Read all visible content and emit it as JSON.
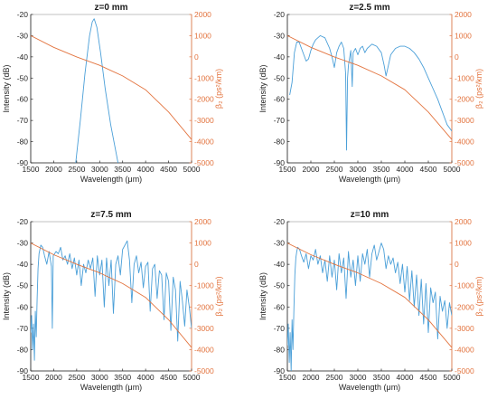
{
  "figure": {
    "colors": {
      "intensity": "#4a9fd8",
      "beta2": "#e3743f",
      "axis": "#262626",
      "frame": "#b3b3b3"
    }
  },
  "chart_data": [
    {
      "type": "line",
      "title": "z=0 mm",
      "xlabel": "Wavelength (μm)",
      "ylabel_left": "Intensity (dB)",
      "ylabel_right": "β₂ (ps²/km)",
      "xlim": [
        1500,
        5000
      ],
      "xticks": [
        1500,
        2000,
        2500,
        3000,
        3500,
        4000,
        4500,
        5000
      ],
      "ylim_left": [
        -90,
        -20
      ],
      "yticks_left": [
        -20,
        -30,
        -40,
        -50,
        -60,
        -70,
        -80,
        -90
      ],
      "ylim_right": [
        -5000,
        2000
      ],
      "yticks_right": [
        2000,
        1000,
        0,
        -1000,
        -2000,
        -3000,
        -4000,
        -5000
      ],
      "grid": false,
      "series": [
        {
          "axis": "left",
          "color": "intensity",
          "x": [
            2480,
            2580,
            2680,
            2780,
            2840,
            2880,
            2940,
            3020,
            3120,
            3240,
            3400
          ],
          "y": [
            -90,
            -70,
            -48,
            -30,
            -23.5,
            -22,
            -26,
            -38,
            -55,
            -72,
            -90
          ]
        },
        {
          "axis": "right",
          "color": "beta2",
          "x": [
            1500,
            2000,
            2500,
            3000,
            3500,
            4000,
            4500,
            5000
          ],
          "y": [
            1000,
            450,
            0,
            -400,
            -900,
            -1550,
            -2600,
            -3900
          ]
        }
      ]
    },
    {
      "type": "line",
      "title": "z=2.5 mm",
      "xlabel": "Wavelength (μm)",
      "ylabel_left": "Intensity (dB)",
      "ylabel_right": "β₂ (ps²/km)",
      "xlim": [
        1500,
        5000
      ],
      "xticks": [
        1500,
        2000,
        2500,
        3000,
        3500,
        4000,
        4500,
        5000
      ],
      "ylim_left": [
        -90,
        -20
      ],
      "yticks_left": [
        -20,
        -30,
        -40,
        -50,
        -60,
        -70,
        -80,
        -90
      ],
      "ylim_right": [
        -5000,
        2000
      ],
      "yticks_right": [
        2000,
        1000,
        0,
        -1000,
        -2000,
        -3000,
        -4000,
        -5000
      ],
      "grid": false,
      "series": [
        {
          "axis": "left",
          "color": "intensity",
          "x": [
            1550,
            1600,
            1650,
            1700,
            1750,
            1800,
            1850,
            1900,
            1950,
            2000,
            2050,
            2100,
            2200,
            2300,
            2400,
            2450,
            2500,
            2550,
            2600,
            2650,
            2700,
            2740,
            2760,
            2780,
            2800,
            2850,
            2880,
            2900,
            2950,
            3000,
            3050,
            3100,
            3150,
            3200,
            3300,
            3400,
            3500,
            3560,
            3600,
            3640,
            3700,
            3800,
            3900,
            4000,
            4100,
            4200,
            4300,
            4400,
            4500,
            4600,
            4700,
            4800,
            4900,
            5000
          ],
          "y": [
            -58,
            -52,
            -38,
            -33,
            -33,
            -36,
            -39,
            -42,
            -41,
            -37,
            -34,
            -32,
            -30,
            -31,
            -36,
            -40,
            -45,
            -38,
            -35,
            -33,
            -36,
            -48,
            -84,
            -50,
            -44,
            -37,
            -54,
            -38,
            -36,
            -39,
            -36,
            -35,
            -38,
            -36,
            -34,
            -35,
            -38,
            -44,
            -49,
            -45,
            -39,
            -36,
            -35,
            -35,
            -36,
            -38,
            -41,
            -45,
            -50,
            -55,
            -60,
            -66,
            -72,
            -75
          ]
        },
        {
          "axis": "right",
          "color": "beta2",
          "x": [
            1500,
            2000,
            2500,
            3000,
            3500,
            4000,
            4500,
            5000
          ],
          "y": [
            1000,
            450,
            0,
            -400,
            -900,
            -1550,
            -2600,
            -3900
          ]
        }
      ]
    },
    {
      "type": "line",
      "title": "z=7.5 mm",
      "xlabel": "Wavelength (μm)",
      "ylabel_left": "Intensity (dB)",
      "ylabel_right": "β₂ (ps²/km)",
      "xlim": [
        1500,
        5000
      ],
      "xticks": [
        1500,
        2000,
        2500,
        3000,
        3500,
        4000,
        4500,
        5000
      ],
      "ylim_left": [
        -90,
        -20
      ],
      "yticks_left": [
        -20,
        -30,
        -40,
        -50,
        -60,
        -70,
        -80,
        -90
      ],
      "ylim_right": [
        -5000,
        2000
      ],
      "yticks_right": [
        2000,
        1000,
        0,
        -1000,
        -2000,
        -3000,
        -4000,
        -5000
      ],
      "grid": false,
      "series": [
        {
          "axis": "left",
          "color": "intensity",
          "x": [
            1500,
            1520,
            1540,
            1560,
            1580,
            1600,
            1620,
            1640,
            1660,
            1680,
            1700,
            1720,
            1760,
            1800,
            1850,
            1900,
            1950,
            1970,
            1990,
            2050,
            2100,
            2150,
            2200,
            2250,
            2300,
            2350,
            2400,
            2450,
            2500,
            2550,
            2600,
            2650,
            2700,
            2750,
            2800,
            2850,
            2900,
            2950,
            3000,
            3050,
            3100,
            3150,
            3200,
            3250,
            3300,
            3350,
            3400,
            3450,
            3500,
            3550,
            3600,
            3650,
            3700,
            3750,
            3800,
            3850,
            3900,
            3950,
            4000,
            4050,
            4100,
            4150,
            4200,
            4250,
            4300,
            4350,
            4400,
            4450,
            4500,
            4550,
            4600,
            4650,
            4700,
            4750,
            4800,
            4850,
            4900,
            4950,
            5000
          ],
          "y": [
            -72,
            -64,
            -80,
            -68,
            -85,
            -62,
            -74,
            -56,
            -42,
            -35,
            -33,
            -31,
            -32,
            -36,
            -40,
            -34,
            -41,
            -70,
            -36,
            -34,
            -35,
            -32,
            -38,
            -36,
            -40,
            -35,
            -42,
            -37,
            -45,
            -38,
            -50,
            -40,
            -44,
            -38,
            -42,
            -37,
            -55,
            -36,
            -45,
            -38,
            -60,
            -37,
            -50,
            -38,
            -63,
            -40,
            -36,
            -45,
            -33,
            -31,
            -29,
            -38,
            -58,
            -40,
            -36,
            -44,
            -39,
            -51,
            -41,
            -39,
            -62,
            -42,
            -40,
            -56,
            -43,
            -45,
            -66,
            -44,
            -48,
            -71,
            -46,
            -52,
            -76,
            -48,
            -57,
            -69,
            -52,
            -60,
            -70
          ]
        },
        {
          "axis": "right",
          "color": "beta2",
          "x": [
            1500,
            2000,
            2500,
            3000,
            3500,
            4000,
            4500,
            5000
          ],
          "y": [
            1000,
            450,
            0,
            -400,
            -900,
            -1550,
            -2600,
            -3900
          ]
        }
      ]
    },
    {
      "type": "line",
      "title": "z=10 mm",
      "xlabel": "Wavelength (μm)",
      "ylabel_left": "Intensity (dB)",
      "ylabel_right": "β₂ (ps²/km)",
      "xlim": [
        1500,
        5000
      ],
      "xticks": [
        1500,
        2000,
        2500,
        3000,
        3500,
        4000,
        4500,
        5000
      ],
      "ylim_left": [
        -90,
        -20
      ],
      "yticks_left": [
        -20,
        -30,
        -40,
        -50,
        -60,
        -70,
        -80,
        -90
      ],
      "ylim_right": [
        -5000,
        2000
      ],
      "yticks_right": [
        2000,
        1000,
        0,
        -1000,
        -2000,
        -3000,
        -4000,
        -5000
      ],
      "grid": false,
      "series": [
        {
          "axis": "left",
          "color": "intensity",
          "x": [
            1500,
            1520,
            1540,
            1560,
            1580,
            1600,
            1620,
            1640,
            1660,
            1680,
            1700,
            1720,
            1760,
            1800,
            1850,
            1900,
            1950,
            2000,
            2050,
            2100,
            2150,
            2200,
            2250,
            2300,
            2350,
            2400,
            2450,
            2500,
            2550,
            2600,
            2650,
            2700,
            2750,
            2800,
            2850,
            2900,
            2950,
            3000,
            3050,
            3100,
            3150,
            3200,
            3250,
            3300,
            3350,
            3400,
            3450,
            3500,
            3550,
            3600,
            3650,
            3700,
            3750,
            3800,
            3850,
            3900,
            3950,
            4000,
            4050,
            4100,
            4150,
            4200,
            4250,
            4300,
            4350,
            4400,
            4450,
            4500,
            4550,
            4600,
            4650,
            4700,
            4750,
            4800,
            4850,
            4900,
            4950,
            5000
          ],
          "y": [
            -78,
            -68,
            -86,
            -72,
            -90,
            -66,
            -80,
            -60,
            -45,
            -37,
            -34,
            -32,
            -33,
            -36,
            -39,
            -35,
            -42,
            -36,
            -38,
            -33,
            -40,
            -36,
            -44,
            -38,
            -48,
            -36,
            -46,
            -38,
            -52,
            -35,
            -44,
            -37,
            -56,
            -34,
            -46,
            -38,
            -50,
            -36,
            -48,
            -35,
            -40,
            -33,
            -46,
            -35,
            -31,
            -38,
            -34,
            -30,
            -33,
            -42,
            -36,
            -40,
            -37,
            -44,
            -39,
            -49,
            -40,
            -53,
            -41,
            -57,
            -43,
            -60,
            -45,
            -64,
            -47,
            -68,
            -49,
            -72,
            -51,
            -58,
            -53,
            -75,
            -55,
            -62,
            -57,
            -70,
            -58,
            -64
          ]
        },
        {
          "axis": "right",
          "color": "beta2",
          "x": [
            1500,
            2000,
            2500,
            3000,
            3500,
            4000,
            4500,
            5000
          ],
          "y": [
            1000,
            450,
            0,
            -400,
            -900,
            -1550,
            -2600,
            -3900
          ]
        }
      ]
    }
  ]
}
